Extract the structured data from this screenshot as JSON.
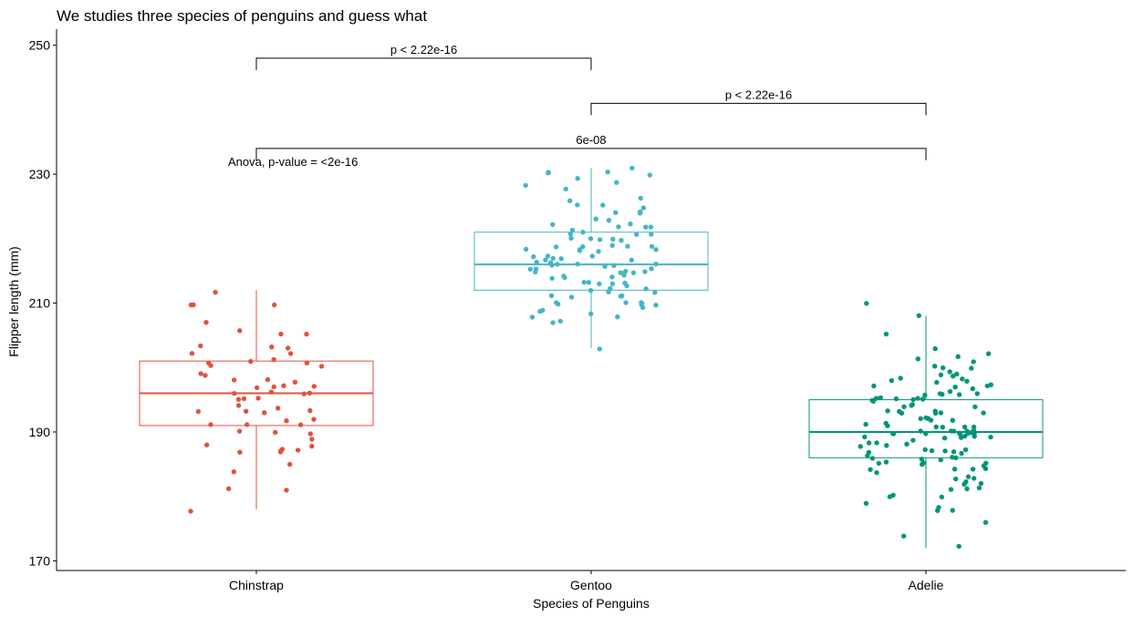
{
  "chart_data": {
    "type": "box",
    "title": "We studies three species of penguins and guess what",
    "xlabel": "Species of Penguins",
    "ylabel": "Flipper length (mm)",
    "ylim": [
      168.5,
      252.5
    ],
    "yticks": [
      170,
      190,
      210,
      230,
      250
    ],
    "grid": false,
    "legend": "none",
    "categories": [
      "Chinstrap",
      "Gentoo",
      "Adelie"
    ],
    "series": [
      {
        "name": "Chinstrap",
        "color": "#E2513F",
        "box": {
          "min": 178,
          "q1": 191,
          "median": 196,
          "q3": 201,
          "max": 212
        },
        "points": [
          178,
          181,
          181,
          184,
          185,
          187,
          187,
          187,
          187,
          187,
          188,
          188,
          189,
          190,
          190,
          190,
          191,
          191,
          191,
          192,
          192,
          193,
          193,
          193,
          193,
          194,
          194,
          195,
          195,
          195,
          196,
          196,
          196,
          196,
          197,
          197,
          197,
          197,
          198,
          198,
          198,
          199,
          199,
          200,
          200,
          201,
          201,
          201,
          201,
          201,
          202,
          202,
          203,
          203,
          203,
          205,
          205,
          206,
          207,
          210,
          210,
          210,
          212
        ]
      },
      {
        "name": "Gentoo",
        "color": "#45B5C5",
        "box": {
          "min": 203,
          "q1": 212,
          "median": 216,
          "q3": 221,
          "max": 231
        },
        "points": [
          203,
          207,
          207,
          208,
          208,
          208,
          209,
          209,
          209,
          210,
          210,
          210,
          210,
          210,
          210,
          210,
          211,
          211,
          211,
          211,
          212,
          212,
          212,
          212,
          212,
          213,
          213,
          213,
          213,
          213,
          213,
          214,
          214,
          214,
          214,
          214,
          215,
          215,
          215,
          215,
          215,
          215,
          215,
          215,
          216,
          216,
          216,
          216,
          216,
          216,
          216,
          216,
          217,
          217,
          217,
          217,
          217,
          217,
          217,
          218,
          218,
          218,
          218,
          218,
          219,
          219,
          219,
          219,
          219,
          220,
          220,
          220,
          220,
          220,
          221,
          221,
          221,
          221,
          221,
          222,
          222,
          222,
          222,
          222,
          223,
          223,
          224,
          224,
          224,
          225,
          225,
          225,
          226,
          226,
          228,
          228,
          229,
          229,
          230,
          230,
          230,
          230,
          231
        ]
      },
      {
        "name": "Adelie",
        "color": "#00957A",
        "box": {
          "min": 172,
          "q1": 186,
          "median": 190,
          "q3": 195,
          "max": 208
        },
        "points": [
          172,
          174,
          176,
          178,
          178,
          178,
          179,
          180,
          180,
          180,
          181,
          181,
          181,
          182,
          182,
          182,
          183,
          183,
          183,
          184,
          184,
          184,
          184,
          184,
          185,
          185,
          185,
          185,
          185,
          185,
          186,
          186,
          186,
          186,
          186,
          186,
          187,
          187,
          187,
          187,
          187,
          187,
          187,
          188,
          188,
          188,
          188,
          188,
          189,
          189,
          189,
          189,
          189,
          189,
          189,
          190,
          190,
          190,
          190,
          190,
          190,
          190,
          190,
          190,
          190,
          190,
          190,
          190,
          190,
          191,
          191,
          191,
          191,
          191,
          191,
          191,
          192,
          192,
          192,
          192,
          192,
          193,
          193,
          193,
          193,
          193,
          193,
          193,
          194,
          194,
          194,
          194,
          195,
          195,
          195,
          195,
          195,
          195,
          195,
          195,
          196,
          196,
          196,
          196,
          196,
          196,
          197,
          197,
          197,
          197,
          197,
          198,
          198,
          198,
          198,
          198,
          199,
          199,
          199,
          199,
          200,
          200,
          200,
          201,
          201,
          202,
          202,
          203,
          205,
          208,
          210
        ]
      }
    ],
    "comparisons": [
      {
        "from": "Chinstrap",
        "to": "Gentoo",
        "label": "p < 2.22e-16",
        "y": 248
      },
      {
        "from": "Gentoo",
        "to": "Adelie",
        "label": "p < 2.22e-16",
        "y": 241
      },
      {
        "from": "Chinstrap",
        "to": "Adelie",
        "label": "6e-08",
        "y": 234
      }
    ],
    "anova_label": "Anova, p-value = <2e-16"
  }
}
